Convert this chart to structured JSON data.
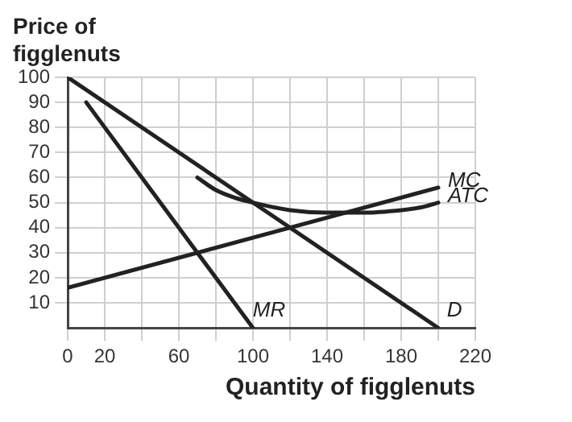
{
  "chart_data": {
    "type": "line",
    "xlabel": "Quantity of figglenuts",
    "ylabel": "Price of figglenuts",
    "series": [
      {
        "name": "D",
        "color": "#222222",
        "x": [
          0,
          200
        ],
        "values": [
          100,
          0
        ]
      },
      {
        "name": "MR",
        "color": "#222222",
        "x": [
          10,
          100
        ],
        "values": [
          90,
          0
        ]
      },
      {
        "name": "MC",
        "color": "#222222",
        "x": [
          0,
          200
        ],
        "values": [
          16,
          56
        ]
      },
      {
        "name": "ATC",
        "color": "#222222",
        "x": [
          70,
          80,
          90,
          100,
          120,
          140,
          160,
          180,
          190,
          200
        ],
        "values": [
          60,
          55,
          52,
          50,
          47,
          46,
          46,
          47,
          48,
          50
        ]
      }
    ],
    "xlim": [
      0,
      220
    ],
    "xticks": [
      0,
      20,
      {
        "value": 40,
        "label": null
      },
      60,
      {
        "value": 80,
        "label": null
      },
      100,
      {
        "value": 120,
        "label": null
      },
      140,
      {
        "value": 160,
        "label": null
      },
      180,
      {
        "value": 200,
        "label": null
      },
      220
    ],
    "ylim": [
      0,
      100
    ],
    "yticks": [
      10,
      20,
      30,
      40,
      50,
      60,
      70,
      80,
      90,
      100
    ],
    "grid": true,
    "legend": false,
    "marker": "none",
    "line_style": "solid"
  }
}
